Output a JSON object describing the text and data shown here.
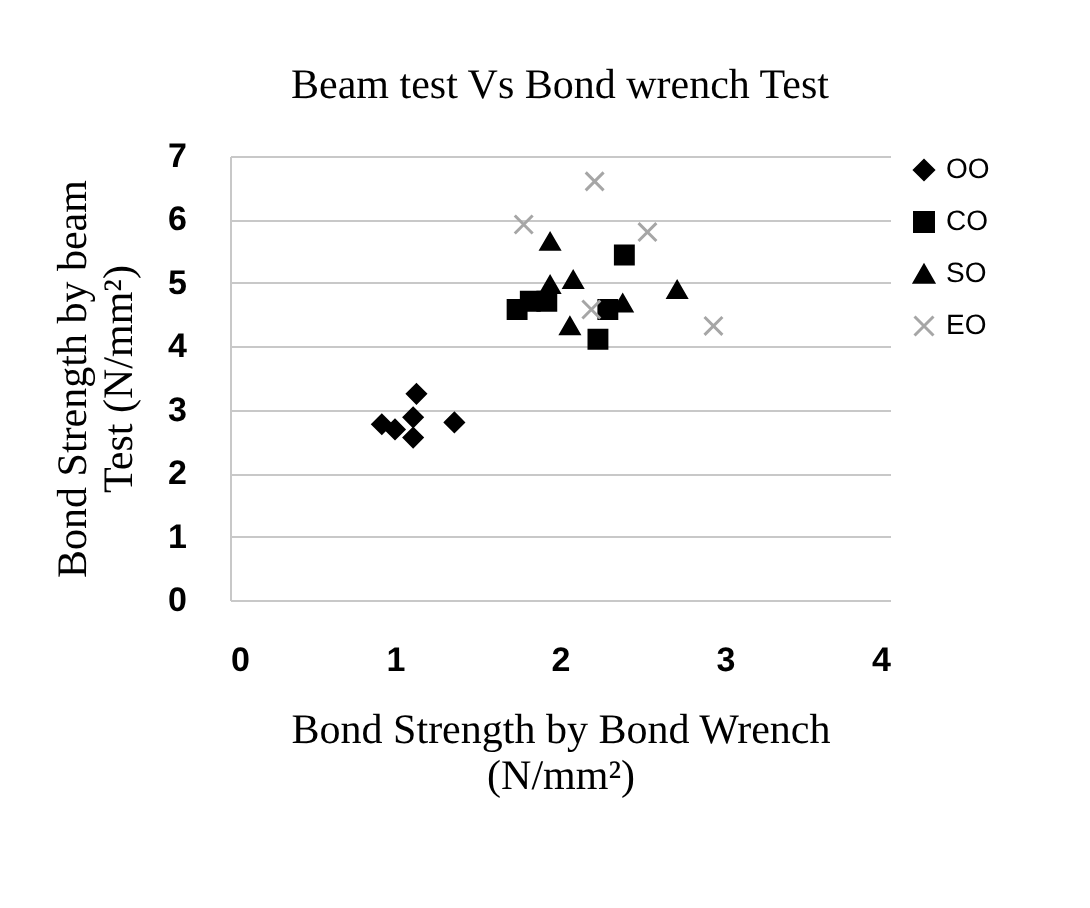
{
  "chart_data": {
    "type": "scatter",
    "title": "Beam test Vs Bond wrench Test",
    "xlabel": "Bond Strength by Bond Wrench\n(N/mm²)",
    "ylabel": "Bond  Strength by beam\nTest (N/mm²)",
    "xlim": [
      0,
      4
    ],
    "xticks": [
      0,
      1,
      2,
      3,
      4
    ],
    "ylim": [
      0,
      7
    ],
    "yticks": [
      0,
      1,
      2,
      3,
      4,
      5,
      6,
      7
    ],
    "grid": "y",
    "legend": "right",
    "series": [
      {
        "name": "OO",
        "color": "#000000",
        "marker": "diamond",
        "x": [
          0.92,
          1.0,
          1.11,
          1.11,
          1.13,
          1.36
        ],
        "values": [
          2.77,
          2.69,
          2.56,
          2.88,
          3.25,
          2.8
        ]
      },
      {
        "name": "CO",
        "color": "#000000",
        "marker": "square",
        "x": [
          1.74,
          1.82,
          1.92,
          2.23,
          2.29,
          2.39
        ],
        "values": [
          4.58,
          4.71,
          4.71,
          4.11,
          4.58,
          5.44
        ]
      },
      {
        "name": "SO",
        "color": "#000000",
        "marker": "triangle",
        "x": [
          1.94,
          1.94,
          2.08,
          2.06,
          2.38,
          2.71
        ],
        "values": [
          5.65,
          4.97,
          5.05,
          4.32,
          4.68,
          4.89
        ]
      },
      {
        "name": "EO",
        "color": "#a6a6a6",
        "marker": "cross",
        "x": [
          2.21,
          1.78,
          2.53,
          2.93,
          2.19
        ],
        "values": [
          6.6,
          5.92,
          5.8,
          4.32,
          4.58
        ]
      }
    ]
  }
}
